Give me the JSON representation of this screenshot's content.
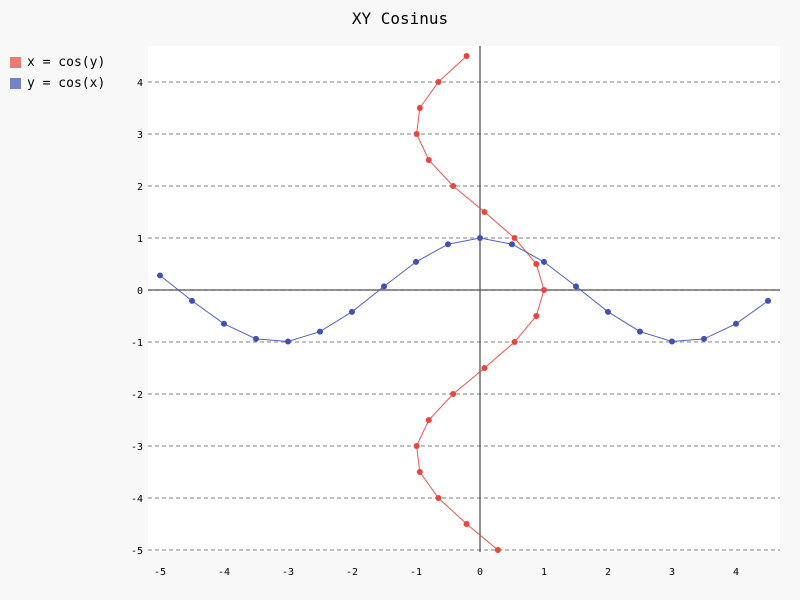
{
  "chart_data": {
    "type": "line",
    "title": "XY Cosinus",
    "xlabel": "",
    "ylabel": "",
    "xlim": [
      -5,
      4.5
    ],
    "ylim": [
      -5,
      4.7
    ],
    "x_ticks": [
      -5,
      -4,
      -3,
      -2,
      -1,
      0,
      1,
      2,
      3,
      4
    ],
    "y_ticks": [
      -5,
      -4,
      -3,
      -2,
      -1,
      0,
      1,
      2,
      3,
      4
    ],
    "grid": "horizontal-dashed",
    "legend_position": "top-left",
    "series": [
      {
        "name": "x = cos(y)",
        "color": "#e8453c",
        "points": [
          [
            0.28,
            -5.0
          ],
          [
            -0.21,
            -4.5
          ],
          [
            -0.65,
            -4.0
          ],
          [
            -0.94,
            -3.5
          ],
          [
            -0.99,
            -3.0
          ],
          [
            -0.8,
            -2.5
          ],
          [
            -0.42,
            -2.0
          ],
          [
            0.07,
            -1.5
          ],
          [
            0.54,
            -1.0
          ],
          [
            0.88,
            -0.5
          ],
          [
            1.0,
            0.0
          ],
          [
            0.88,
            0.5
          ],
          [
            0.54,
            1.0
          ],
          [
            0.07,
            1.5
          ],
          [
            -0.42,
            2.0
          ],
          [
            -0.8,
            2.5
          ],
          [
            -0.99,
            3.0
          ],
          [
            -0.94,
            3.5
          ],
          [
            -0.65,
            4.0
          ],
          [
            -0.21,
            4.5
          ]
        ]
      },
      {
        "name": "y = cos(x)",
        "color": "#3f51b5",
        "points": [
          [
            -5.0,
            0.28
          ],
          [
            -4.5,
            -0.21
          ],
          [
            -4.0,
            -0.65
          ],
          [
            -3.5,
            -0.94
          ],
          [
            -3.0,
            -0.99
          ],
          [
            -2.5,
            -0.8
          ],
          [
            -2.0,
            -0.42
          ],
          [
            -1.5,
            0.07
          ],
          [
            -1.0,
            0.54
          ],
          [
            -0.5,
            0.88
          ],
          [
            0.0,
            1.0
          ],
          [
            0.5,
            0.88
          ],
          [
            1.0,
            0.54
          ],
          [
            1.5,
            0.07
          ],
          [
            2.0,
            -0.42
          ],
          [
            2.5,
            -0.8
          ],
          [
            3.0,
            -0.99
          ],
          [
            3.5,
            -0.94
          ],
          [
            4.0,
            -0.65
          ],
          [
            4.5,
            -0.21
          ]
        ]
      }
    ]
  }
}
